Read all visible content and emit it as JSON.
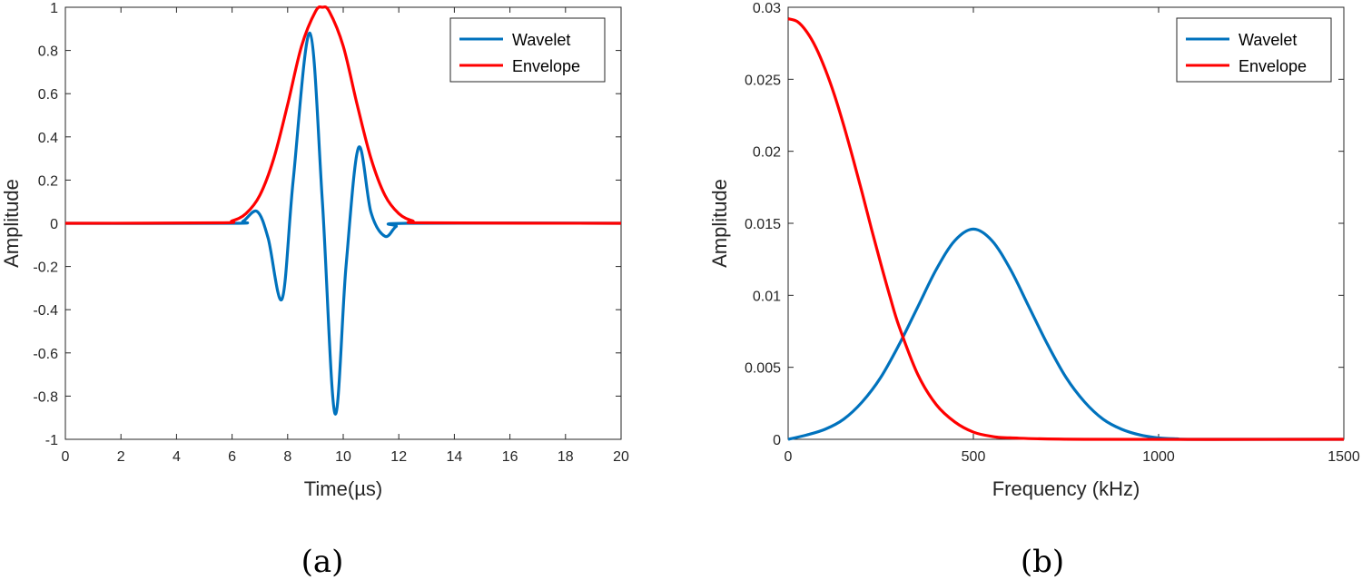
{
  "chart_data": [
    {
      "type": "line",
      "caption": "(a)",
      "xlabel": "Time(µs)",
      "ylabel": "Amplitude",
      "xlim": [
        0,
        20
      ],
      "ylim": [
        -1,
        1
      ],
      "xticks": [
        "0",
        "2",
        "4",
        "6",
        "8",
        "10",
        "12",
        "14",
        "16",
        "18",
        "20"
      ],
      "yticks": [
        "-1",
        "-0.8",
        "-0.6",
        "-0.4",
        "-0.2",
        "0",
        "0.2",
        "0.4",
        "0.6",
        "0.8",
        "1"
      ],
      "grid": false,
      "legend_position": "top-right",
      "series": [
        {
          "name": "Wavelet",
          "color": "#0072BD",
          "x": [
            0,
            6.0,
            6.4,
            6.9,
            7.3,
            7.8,
            8.2,
            8.8,
            9.25,
            9.7,
            10.1,
            10.55,
            11.0,
            11.5,
            11.9,
            12.3,
            20
          ],
          "y": [
            0,
            0,
            0.01,
            0.055,
            -0.07,
            -0.35,
            0.2,
            0.88,
            0.1,
            -0.88,
            -0.2,
            0.35,
            0.05,
            -0.06,
            -0.015,
            0,
            0
          ]
        },
        {
          "name": "Envelope",
          "color": "#FF0000",
          "x": [
            0,
            5.5,
            6.0,
            6.5,
            7.0,
            7.5,
            8.0,
            8.5,
            9.0,
            9.25,
            9.5,
            10.0,
            10.5,
            11.0,
            11.5,
            12.0,
            12.5,
            13.0,
            20
          ],
          "y": [
            0,
            0.002,
            0.011,
            0.045,
            0.13,
            0.3,
            0.55,
            0.82,
            0.98,
            1.0,
            0.98,
            0.82,
            0.55,
            0.3,
            0.13,
            0.045,
            0.011,
            0.002,
            0
          ]
        }
      ]
    },
    {
      "type": "line",
      "caption": "(b)",
      "xlabel": "Frequency (kHz)",
      "ylabel": "Amplitude",
      "xlim": [
        0,
        1500
      ],
      "ylim": [
        0,
        0.03
      ],
      "xticks": [
        "0",
        "500",
        "1000",
        "1500"
      ],
      "yticks": [
        "0",
        "0.005",
        "0.01",
        "0.015",
        "0.02",
        "0.025",
        "0.03"
      ],
      "grid": false,
      "legend_position": "top-right",
      "series": [
        {
          "name": "Wavelet",
          "color": "#0072BD",
          "x": [
            0,
            50,
            100,
            150,
            200,
            250,
            300,
            350,
            400,
            450,
            500,
            550,
            600,
            650,
            700,
            750,
            800,
            850,
            900,
            950,
            1000,
            1050,
            1100,
            1500
          ],
          "y": [
            0,
            0.0003,
            0.0007,
            0.0014,
            0.0026,
            0.0043,
            0.0066,
            0.0092,
            0.0118,
            0.0138,
            0.0146,
            0.0138,
            0.0118,
            0.0092,
            0.0066,
            0.0043,
            0.0026,
            0.0014,
            0.0007,
            0.0003,
            0.0001,
            3e-05,
            0,
            0
          ]
        },
        {
          "name": "Envelope",
          "color": "#FF0000",
          "x": [
            0,
            25,
            50,
            75,
            100,
            125,
            150,
            175,
            200,
            225,
            250,
            275,
            300,
            350,
            400,
            450,
            500,
            550,
            600,
            800,
            1500
          ],
          "y": [
            0.0292,
            0.029,
            0.0283,
            0.0272,
            0.0257,
            0.0239,
            0.0218,
            0.0195,
            0.0171,
            0.0146,
            0.0122,
            0.0099,
            0.0078,
            0.0045,
            0.0024,
            0.0012,
            0.0005,
            0.0002,
            0.0001,
            0,
            0
          ]
        }
      ]
    }
  ]
}
